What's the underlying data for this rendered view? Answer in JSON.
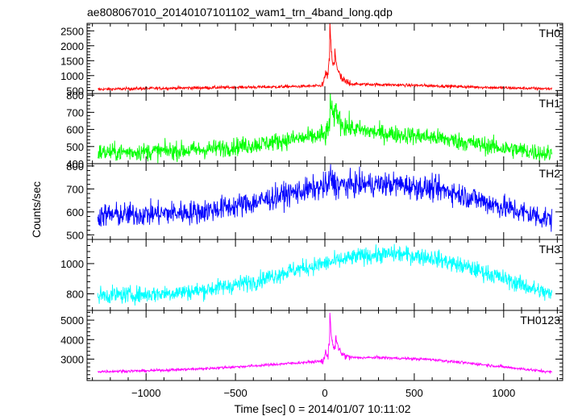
{
  "title": "ae808067010_20140107101102_wam1_trn_4band_long.qdp",
  "xlabel": "Time [sec] 0 = 2014/01/07 10:11:02",
  "ylabel": "Counts/sec",
  "chart_data": [
    {
      "type": "line",
      "panel_label": "TH0",
      "color": "#ff0000",
      "xlim": [
        -1330,
        1330
      ],
      "ylim": [
        400,
        2750
      ],
      "yticks": [
        500,
        1000,
        1500,
        2000,
        2500
      ],
      "ytick_labels": [
        "500",
        "1000",
        "1500",
        "2000",
        "2500"
      ],
      "profile": [
        [
          -1270,
          540
        ],
        [
          -1000,
          570
        ],
        [
          -600,
          600
        ],
        [
          -300,
          620
        ],
        [
          -50,
          650
        ],
        [
          0,
          680
        ],
        [
          50,
          720
        ],
        [
          300,
          700
        ],
        [
          600,
          660
        ],
        [
          1000,
          590
        ],
        [
          1270,
          560
        ]
      ],
      "noise": 25,
      "burst": [
        {
          "t": 28,
          "peak": 2700,
          "width": 12
        },
        {
          "t": 55,
          "peak": 1600,
          "width": 22
        },
        {
          "t": 0,
          "peak": 1100,
          "width": 30
        }
      ],
      "burst_window": [
        -20,
        140
      ],
      "burst_noise": 80
    },
    {
      "type": "line",
      "panel_label": "TH1",
      "color": "#00ff00",
      "xlim": [
        -1330,
        1330
      ],
      "ylim": [
        400,
        810
      ],
      "yticks": [
        400,
        500,
        600,
        700,
        800
      ],
      "ytick_labels": [
        "400",
        "500",
        "600",
        "700",
        "800"
      ],
      "profile": [
        [
          -1270,
          465
        ],
        [
          -1000,
          470
        ],
        [
          -700,
          480
        ],
        [
          -400,
          510
        ],
        [
          -200,
          540
        ],
        [
          0,
          565
        ],
        [
          50,
          620
        ],
        [
          300,
          580
        ],
        [
          600,
          555
        ],
        [
          1000,
          490
        ],
        [
          1270,
          455
        ]
      ],
      "noise": 26,
      "burst": [
        {
          "t": 30,
          "peak": 790,
          "width": 12
        },
        {
          "t": 60,
          "peak": 720,
          "width": 25
        }
      ],
      "burst_window": [
        -20,
        140
      ],
      "burst_noise": 35
    },
    {
      "type": "line",
      "panel_label": "TH2",
      "color": "#0000ff",
      "xlim": [
        -1330,
        1330
      ],
      "ylim": [
        480,
        810
      ],
      "yticks": [
        500,
        600,
        700,
        800
      ],
      "ytick_labels": [
        "500",
        "600",
        "700",
        "800"
      ],
      "profile": [
        [
          -1270,
          585
        ],
        [
          -1000,
          590
        ],
        [
          -700,
          600
        ],
        [
          -400,
          640
        ],
        [
          -200,
          680
        ],
        [
          0,
          710
        ],
        [
          200,
          720
        ],
        [
          400,
          720
        ],
        [
          700,
          690
        ],
        [
          1000,
          620
        ],
        [
          1270,
          565
        ]
      ],
      "noise": 26,
      "burst": [
        {
          "t": 30,
          "peak": 770,
          "width": 14
        }
      ],
      "burst_window": [
        -20,
        120
      ],
      "burst_noise": 30
    },
    {
      "type": "line",
      "panel_label": "TH3",
      "color": "#00ffff",
      "xlim": [
        -1330,
        1330
      ],
      "ylim": [
        690,
        1160
      ],
      "yticks": [
        800,
        1000
      ],
      "ytick_labels": [
        "800",
        "1000"
      ],
      "profile": [
        [
          -1270,
          790
        ],
        [
          -1000,
          795
        ],
        [
          -700,
          820
        ],
        [
          -400,
          880
        ],
        [
          -200,
          950
        ],
        [
          0,
          1000
        ],
        [
          200,
          1050
        ],
        [
          400,
          1065
        ],
        [
          600,
          1040
        ],
        [
          900,
          940
        ],
        [
          1100,
          860
        ],
        [
          1270,
          790
        ]
      ],
      "noise": 28,
      "burst": [],
      "burst_window": [
        0,
        0
      ],
      "burst_noise": 0
    },
    {
      "type": "line",
      "panel_label": "TH0123",
      "color": "#ff00ff",
      "xlim": [
        -1330,
        1330
      ],
      "ylim": [
        1900,
        5500
      ],
      "yticks": [
        3000,
        4000,
        5000
      ],
      "ytick_labels": [
        "3000",
        "4000",
        "5000"
      ],
      "profile": [
        [
          -1270,
          2360
        ],
        [
          -1000,
          2400
        ],
        [
          -700,
          2500
        ],
        [
          -400,
          2650
        ],
        [
          -200,
          2780
        ],
        [
          0,
          2900
        ],
        [
          50,
          3050
        ],
        [
          300,
          3080
        ],
        [
          600,
          2980
        ],
        [
          900,
          2700
        ],
        [
          1270,
          2330
        ]
      ],
      "noise": 35,
      "burst": [
        {
          "t": 28,
          "peak": 5250,
          "width": 12
        },
        {
          "t": 60,
          "peak": 3900,
          "width": 25
        },
        {
          "t": 0,
          "peak": 3300,
          "width": 30
        }
      ],
      "burst_window": [
        -20,
        140
      ],
      "burst_noise": 90
    }
  ],
  "xaxis": {
    "ticks": [
      -1000,
      -500,
      0,
      500,
      1000
    ],
    "tick_labels": [
      "−1000",
      "−500",
      "0",
      "500",
      "1000"
    ]
  }
}
